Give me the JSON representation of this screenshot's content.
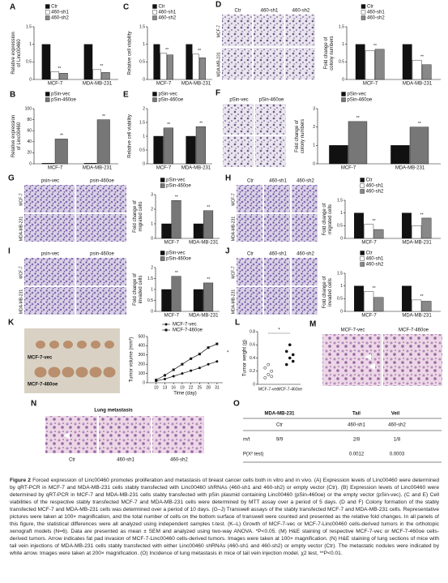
{
  "figure": {
    "panels": {
      "A": {
        "letter": "A",
        "ylabel": [
          "Relative expression",
          "of Linc00460"
        ],
        "categories": [
          "MCF-7",
          "MDA-MB-231"
        ],
        "series": [
          {
            "name": "Ctr",
            "color": "#111111",
            "values": [
              1,
              1
            ]
          },
          {
            "name": "460-sh1",
            "color": "#ffffff",
            "values": [
              0.22,
              0.28
            ]
          },
          {
            "name": "460-sh2",
            "color": "#888888",
            "values": [
              0.18,
              0.2
            ]
          }
        ],
        "ylim": [
          0,
          1.5
        ],
        "yticks": [
          0,
          0.5,
          1,
          1.5
        ],
        "annotation": "**"
      },
      "C": {
        "letter": "C",
        "ylabel": [
          "Relative cell viability"
        ],
        "categories": [
          "MCF-7",
          "MDA-MB-231"
        ],
        "series": [
          {
            "name": "Ctr",
            "color": "#111111",
            "values": [
              1,
              1
            ]
          },
          {
            "name": "460-sh1",
            "color": "#ffffff",
            "values": [
              0.75,
              0.72
            ]
          },
          {
            "name": "460-sh2",
            "color": "#888888",
            "values": [
              0.7,
              0.62
            ]
          }
        ],
        "ylim": [
          0,
          1.5
        ],
        "yticks": [
          0,
          0.5,
          1,
          1.5
        ],
        "annotation": "**"
      },
      "D": {
        "letter": "D",
        "images": {
          "columns": [
            "Ctr",
            "460-sh1",
            "460-sh2"
          ],
          "rows": [
            "MCF-7",
            "MDA-MB-231"
          ]
        },
        "ylabel": [
          "Fold change of",
          "colony numbers"
        ],
        "categories": [
          "MCF-7",
          "MDA-MB-231"
        ],
        "series": [
          {
            "name": "Ctr",
            "color": "#111111",
            "values": [
              1,
              1
            ]
          },
          {
            "name": "460-sh1",
            "color": "#ffffff",
            "values": [
              0.82,
              0.55
            ]
          },
          {
            "name": "460-sh2",
            "color": "#888888",
            "values": [
              0.86,
              0.42
            ]
          }
        ],
        "ylim": [
          0,
          1.5
        ],
        "yticks": [
          0,
          0.5,
          1,
          1.5
        ],
        "annotation": "**"
      },
      "B": {
        "letter": "B",
        "ylabel": [
          "Relative expression",
          "of Linc00460"
        ],
        "categories": [
          "MCF-7",
          "MDA-MB-231"
        ],
        "series": [
          {
            "name": "pSin-vec",
            "color": "#111111",
            "values": [
              1,
              1
            ]
          },
          {
            "name": "pSin-460oe",
            "color": "#777777",
            "values": [
              45,
              80
            ]
          }
        ],
        "ylim": [
          0,
          100
        ],
        "yticks": [
          0,
          20,
          40,
          60,
          80,
          100
        ],
        "annotation": "**"
      },
      "E": {
        "letter": "E",
        "ylabel": [
          "Relative cell viability"
        ],
        "categories": [
          "MCF-7",
          "MDA-MB-231"
        ],
        "series": [
          {
            "name": "pSin-vec",
            "color": "#111111",
            "values": [
              1,
              1
            ]
          },
          {
            "name": "pSin-460oe",
            "color": "#777777",
            "values": [
              1.3,
              1.35
            ]
          }
        ],
        "ylim": [
          0,
          2
        ],
        "yticks": [
          0,
          0.5,
          1,
          1.5,
          2
        ],
        "annotation": "**"
      },
      "F": {
        "letter": "F",
        "images": {
          "columns": [
            "pSin-vec",
            "pSin-460oe"
          ]
        },
        "ylabel": [
          "Fold change of",
          "colony numbers"
        ],
        "categories": [
          "MCF-7",
          "MDA-MB-231"
        ],
        "series": [
          {
            "name": "pSin-vec",
            "color": "#111111",
            "values": [
              1,
              1
            ]
          },
          {
            "name": "pSin-460oe",
            "color": "#777777",
            "values": [
              2.3,
              2
            ]
          }
        ],
        "ylim": [
          0,
          3
        ],
        "yticks": [
          0,
          1,
          2,
          3
        ],
        "annotation": "**"
      },
      "G": {
        "letter": "G",
        "images": {
          "columns": [
            "psin-vec",
            "psin-460oe"
          ],
          "rows": [
            "MCF-7",
            "MDA-MB-231"
          ]
        },
        "ylabel": [
          "Fold change of",
          "migrated cells"
        ],
        "categories": [
          "MCF-7",
          "MDA-MB-231"
        ],
        "series": [
          {
            "name": "pSin-vec",
            "color": "#111111",
            "values": [
              1,
              1
            ]
          },
          {
            "name": "pSin-460oe",
            "color": "#777777",
            "values": [
              2.6,
              1.9
            ]
          }
        ],
        "ylim": [
          0,
          3
        ],
        "yticks": [
          0,
          1,
          2,
          3
        ],
        "annotation": "**"
      },
      "H": {
        "letter": "H",
        "images": {
          "columns": [
            "Ctr",
            "460-sh1",
            "460-sh2"
          ],
          "rows": [
            "MCF-7",
            "MDA-MB-231"
          ]
        },
        "ylabel": [
          "Fold change of",
          "migrated cells"
        ],
        "categories": [
          "MCF-7",
          "MDA-MB-231"
        ],
        "series": [
          {
            "name": "Ctr",
            "color": "#111111",
            "values": [
              1,
              1
            ]
          },
          {
            "name": "460-sh1",
            "color": "#ffffff",
            "values": [
              0.55,
              0.5
            ]
          },
          {
            "name": "460-sh2",
            "color": "#888888",
            "values": [
              0.35,
              0.8
            ]
          }
        ],
        "ylim": [
          0,
          1.5
        ],
        "yticks": [
          0,
          0.5,
          1,
          1.5
        ],
        "annotation": "**"
      },
      "I": {
        "letter": "I",
        "images": {
          "columns": [
            "psin-vec",
            "psin-460oe"
          ],
          "rows": [
            "MCF-7",
            "MDA-MB-231"
          ]
        },
        "ylabel": [
          "Fold change of",
          "invaded cells"
        ],
        "categories": [
          "MCF-7",
          "MDA-MB-231"
        ],
        "series": [
          {
            "name": "pSin-vec",
            "color": "#111111",
            "values": [
              1,
              1
            ]
          },
          {
            "name": "pSin-460oe",
            "color": "#777777",
            "values": [
              1.6,
              1.3
            ]
          }
        ],
        "ylim": [
          0,
          2
        ],
        "yticks": [
          0,
          0.5,
          1,
          1.5,
          2
        ],
        "annotation": "**"
      },
      "J": {
        "letter": "J",
        "images": {
          "columns": [
            "Ctr",
            "460-sh1",
            "460-sh2"
          ],
          "rows": [
            "MCF-7",
            "MDA-MB-231"
          ]
        },
        "ylabel": [
          "Fold change of",
          "invaded cells"
        ],
        "categories": [
          "MCF-7",
          "MDA-MB-231"
        ],
        "series": [
          {
            "name": "Ctr",
            "color": "#111111",
            "values": [
              1,
              1
            ]
          },
          {
            "name": "460-sh1",
            "color": "#ffffff",
            "values": [
              0.78,
              0.45
            ]
          },
          {
            "name": "460-sh2",
            "color": "#888888",
            "values": [
              0.55,
              0.4
            ]
          }
        ],
        "ylim": [
          0,
          1.5
        ],
        "yticks": [
          0,
          0.5,
          1,
          1.5
        ],
        "annotation": "**"
      },
      "K": {
        "letter": "K",
        "photo_labels": [
          "MCF-7-vec",
          "MCF-7-460oe"
        ],
        "ylabel": [
          "Tumor volume (mm³)"
        ],
        "xlabel": "Time (day)",
        "x": [
          10,
          13,
          16,
          19,
          22,
          25,
          28,
          31
        ],
        "series": [
          {
            "name": "MCF-7-vec",
            "color": "#111111",
            "values": [
              20,
              40,
              70,
              100,
              130,
              160,
              200,
              230
            ]
          },
          {
            "name": "MCF-7-460oe",
            "color": "#111111",
            "values": [
              30,
              80,
              140,
              200,
              260,
              310,
              380,
              420
            ]
          }
        ],
        "xlim": [
          7,
          33
        ],
        "xticks": [
          10,
          13,
          16,
          19,
          22,
          25,
          28,
          31
        ],
        "ylim": [
          0,
          500
        ],
        "yticks": [
          0,
          100,
          200,
          300,
          400,
          500
        ],
        "annotation": "*"
      },
      "L": {
        "letter": "L",
        "ylabel": [
          "Tumor weight (g)"
        ],
        "categories": [
          "MCF-7-vec",
          "MCF-7-460oe"
        ],
        "series": [
          {
            "name": "MCF-7-vec",
            "values": [
              0.1,
              0.15,
              0.2,
              0.25,
              0.3,
              0.12
            ]
          },
          {
            "name": "MCF-7-460oe",
            "values": [
              0.3,
              0.4,
              0.45,
              0.5,
              0.6,
              0.35
            ]
          }
        ],
        "ylim": [
          0,
          0.8
        ],
        "yticks": [
          0,
          0.2,
          0.4,
          0.6,
          0.8
        ],
        "annotation": "*"
      },
      "M": {
        "letter": "M",
        "images": {
          "columns": [
            "MCF-7-vec",
            "MCF-7-460oe"
          ]
        }
      },
      "N": {
        "letter": "N",
        "title": "Lung metastasis",
        "images": {
          "columns": [
            "Ctr",
            "460-sh1",
            "460-sh2"
          ]
        }
      },
      "O": {
        "letter": "O",
        "header": [
          "MDA-MB-231",
          "Tail",
          "Veil"
        ],
        "columns": [
          "Ctr",
          "460-sh1",
          "460-sh2"
        ],
        "rows": [
          {
            "label": "m/t",
            "cells": [
              "9/9",
              "2/8",
              "1/8"
            ]
          },
          {
            "label": "P(X² test)",
            "cells": [
              "0.0012",
              "0.0003"
            ]
          }
        ]
      }
    },
    "caption": {
      "label": "Figure 2",
      "text": "Forced expression of Linc00460 promotes proliferation and metastasis of breast cancer cells both in vitro and in vivo. (A) Expression levels of Linc00460 were determined by qRT-PCR in MCF-7 and MDA-MB-231 cells stably transfected with Linc00460 shRNAs (460-sh1 and 460-sh2) or empty vector (Ctr). (B) Expression levels of Linc00460 were determined by qRT-PCR in MCF-7 and MDA-MB-231 cells stably transfected with pSin plasmid containing Linc00460 (pSin-460oe) or the empty vector (pSin-vec). (C and E) Cell viabilities of the respective stably transfected MCF-7 and MDA-MB-231 cells were determined by MTT assay over a period of 5 days. (D and F) Colony formation of the stably transfected MCF-7 and MDA-MB-231 cells was determined over a period of 10 days. (G–J) Transwell assays of the stably transfected MCF-7 and MDA-MB-231 cells. Representative pictures were taken at 100× magnification, and the total number of cells on the bottom surface of transwell were counted and presented as the relative fold changes. In all panels of this figure, the statistical differences were all analyzed using independent samples t-test. (K–L) Growth of MCF-7-vec or MCF-7-Linc00460 cells-derived tumors in the orthotopic xenograft models (N=6). Data are presented as mean ± SEM and analyzed using two-way ANOVA. *P<0.05. (M) H&E staining of respective MCF-7-vec or MCF-7-460oe cells-derived tumors. Arrow indicates fat pad invasion of MCF-7-Linc00460 cells-derived tumors. Images were taken at 100× magnification. (N) H&E staining of lung sections of mice with tail vein injections of MDA-MB-231 cells stably transfected with either Linc00460 shRNAs (460-sh1 and 460-sh2) or empty vector (Ctr). The metastatic nodules were indicated by white arrow. Images were taken at 200× magnification. (O) Incidence of lung metastasis in mice of tail vein injection model. χ2 test, **P<0.01."
    }
  }
}
